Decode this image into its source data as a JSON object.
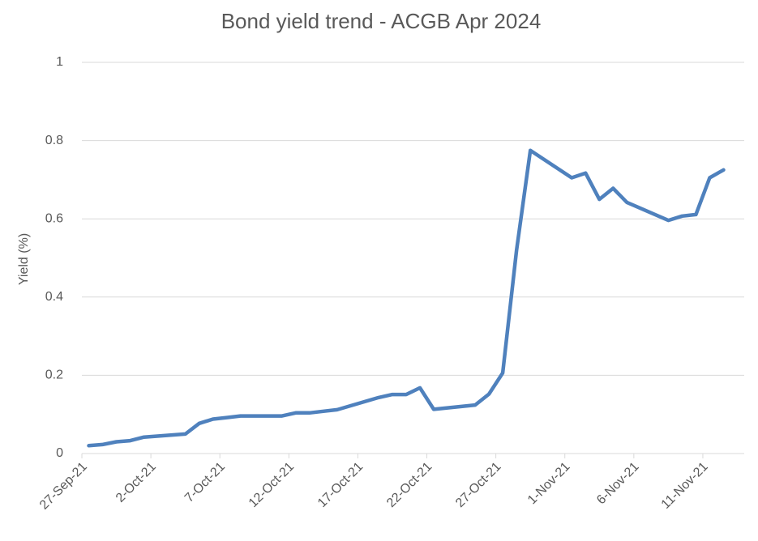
{
  "chart_data": {
    "type": "line",
    "title": "Bond yield trend - ACGB Apr 2024",
    "y_label": "Yield (%)",
    "x": [
      "2021-09-27",
      "2021-09-28",
      "2021-09-29",
      "2021-09-30",
      "2021-10-01",
      "2021-10-04",
      "2021-10-05",
      "2021-10-06",
      "2021-10-07",
      "2021-10-08",
      "2021-10-11",
      "2021-10-12",
      "2021-10-13",
      "2021-10-14",
      "2021-10-15",
      "2021-10-18",
      "2021-10-19",
      "2021-10-20",
      "2021-10-21",
      "2021-10-22",
      "2021-10-25",
      "2021-10-26",
      "2021-10-27",
      "2021-10-28",
      "2021-10-29",
      "2021-11-01",
      "2021-11-02",
      "2021-11-03",
      "2021-11-04",
      "2021-11-05",
      "2021-11-08",
      "2021-11-09",
      "2021-11-10",
      "2021-11-11",
      "2021-11-12"
    ],
    "series": [
      {
        "name": "Yield",
        "color": "#4f81bd",
        "values": [
          0.02,
          0.023,
          0.03,
          0.033,
          0.042,
          0.05,
          0.077,
          0.088,
          0.092,
          0.096,
          0.096,
          0.104,
          0.104,
          0.108,
          0.112,
          0.143,
          0.151,
          0.151,
          0.168,
          0.113,
          0.124,
          0.152,
          0.206,
          0.52,
          0.775,
          0.705,
          0.717,
          0.65,
          0.678,
          0.642,
          0.596,
          0.607,
          0.611,
          0.705,
          0.725
        ]
      }
    ],
    "xlim": [
      "2021-09-27",
      "2021-11-14"
    ],
    "xticks": [
      {
        "value": "2021-09-27",
        "label": "27-Sep-21"
      },
      {
        "value": "2021-10-02",
        "label": "2-Oct-21"
      },
      {
        "value": "2021-10-07",
        "label": "7-Oct-21"
      },
      {
        "value": "2021-10-12",
        "label": "12-Oct-21"
      },
      {
        "value": "2021-10-17",
        "label": "17-Oct-21"
      },
      {
        "value": "2021-10-22",
        "label": "22-Oct-21"
      },
      {
        "value": "2021-10-27",
        "label": "27-Oct-21"
      },
      {
        "value": "2021-11-01",
        "label": "1-Nov-21"
      },
      {
        "value": "2021-11-06",
        "label": "6-Nov-21"
      },
      {
        "value": "2021-11-11",
        "label": "11-Nov-21"
      }
    ],
    "ylim": [
      0,
      1
    ],
    "yticks": [
      0,
      0.2,
      0.4,
      0.6,
      0.8,
      1
    ],
    "grid": true
  }
}
